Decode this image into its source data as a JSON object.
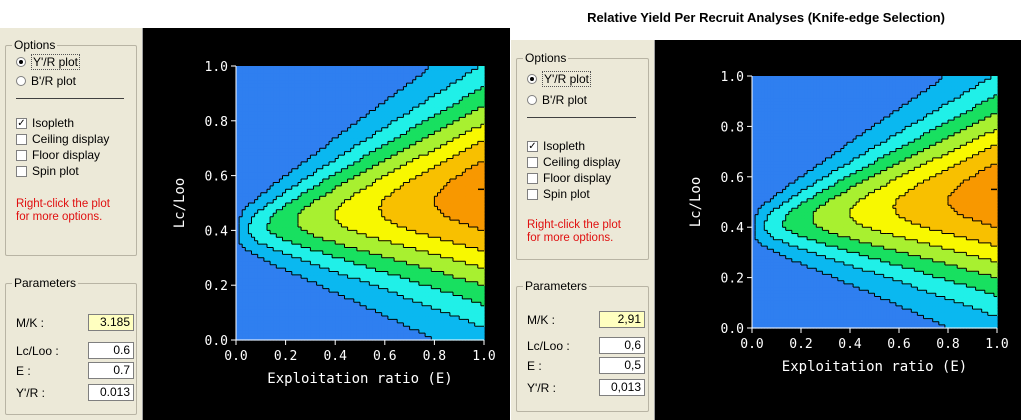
{
  "right_panel": {
    "title": "Relative Yield Per Recruit Analyses (Knife-edge Selection)"
  },
  "left_panel": {
    "options_group": "Options",
    "radio_yr": "Y'/R plot",
    "radio_br": "B'/R plot",
    "isopleth": "Isopleth",
    "ceiling": "Ceiling display",
    "floor": "Floor display",
    "spin": "Spin plot",
    "hint_line1": "Right-click the plot",
    "hint_line2": "for more options.",
    "parameters_group": "Parameters",
    "mk_label": "M/K :",
    "mk_value": "3.185",
    "lc_label": "Lc/Loo :",
    "lc_value": "0.6",
    "e_label": "E :",
    "e_value": "0.7",
    "yr_label": "Y'/R :",
    "yr_value": "0.013"
  },
  "right_side": {
    "options_group": "Options",
    "radio_yr": "Y'/R plot",
    "radio_br": "B'/R plot",
    "isopleth": "Isopleth",
    "ceiling": "Ceiling display",
    "floor": "Floor display",
    "spin": "Spin plot",
    "hint_line1": "Right-click the plot",
    "hint_line2": "for more options.",
    "parameters_group": "Parameters",
    "mk_label": "M/K :",
    "mk_value": "2,91",
    "lc_label": "Lc/Loo :",
    "lc_value": "0,6",
    "e_label": "E :",
    "e_value": "0,5",
    "yr_label": "Y'/R :",
    "yr_value": "0,013"
  },
  "icons": {
    "checked": "check-mark-icon"
  },
  "colors": {
    "levels": [
      "#2f7ff0",
      "#0ab8f0",
      "#20f0e8",
      "#18e060",
      "#a8f030",
      "#f8f800",
      "#f8c000",
      "#f89800",
      "#f86010"
    ]
  },
  "chart_data": [
    {
      "type": "heatmap",
      "subtype": "contour isopleth",
      "xlabel": "Exploitation ratio (E)",
      "ylabel": "Lc/Loo",
      "xlim": [
        0,
        1
      ],
      "ylim": [
        0,
        1
      ],
      "x_ticks": [
        "0.0",
        "0.2",
        "0.4",
        "0.6",
        "0.8",
        "1.0"
      ],
      "y_ticks": [
        "0.0",
        "0.2",
        "0.4",
        "0.6",
        "0.8",
        "1.0"
      ],
      "peak": {
        "x": 1.0,
        "y": 0.55
      },
      "grid": false
    },
    {
      "type": "heatmap",
      "subtype": "contour isopleth",
      "xlabel": "Exploitation ratio (E)",
      "ylabel": "Lc/Loo",
      "xlim": [
        0,
        1
      ],
      "ylim": [
        0,
        1
      ],
      "x_ticks": [
        "0.0",
        "0.2",
        "0.4",
        "0.6",
        "0.8",
        "1.0"
      ],
      "y_ticks": [
        "0.0",
        "0.2",
        "0.4",
        "0.6",
        "0.8",
        "1.0"
      ],
      "peak": {
        "x": 1.0,
        "y": 0.55
      },
      "grid": false
    }
  ]
}
